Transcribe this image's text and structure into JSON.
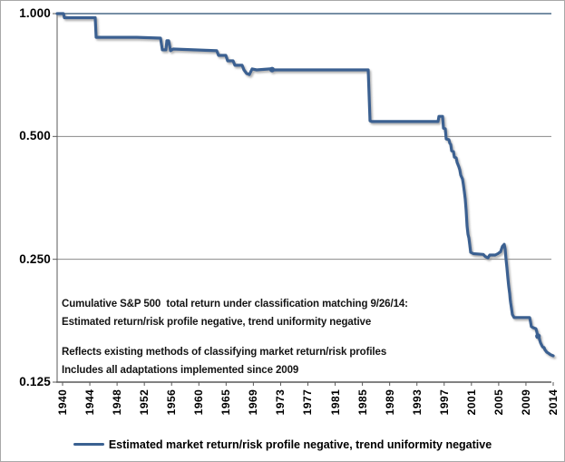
{
  "chart_data": {
    "type": "line",
    "title": "",
    "x_axis": {
      "tick_labels": [
        "1940",
        "1944",
        "1948",
        "1952",
        "1956",
        "1960",
        "1965",
        "1969",
        "1973",
        "1977",
        "1981",
        "1985",
        "1989",
        "1993",
        "1997",
        "2001",
        "2005",
        "2009",
        "2014"
      ],
      "range": [
        1939.2,
        2014
      ]
    },
    "y_axis": {
      "scale": "log2",
      "tick_labels": [
        "1.000",
        "0.500",
        "0.250",
        "0.125"
      ],
      "tick_values": [
        1.0,
        0.5,
        0.25,
        0.125
      ],
      "ylim": [
        0.125,
        1.0
      ]
    },
    "grid": "horizontal-only",
    "legend": {
      "position": "bottom",
      "label": "Estimated market return/risk profile negative, trend uniformity negative"
    },
    "annotation_lines": [
      "Cumulative S&P 500  total return under classification matching 9/26/14:",
      "Estimated return/risk profile negative, trend uniformity negative",
      "Reflects existing methods of classifying market return/risk profiles",
      "Includes all adaptations implemented since 2009"
    ],
    "colors": {
      "line": "#3A6191",
      "line_shadow": "#8f8f8f",
      "top_gridline": "#4A6A87",
      "gridline": "#8A8A8A",
      "axis": "#595959",
      "figure_border": "#A8A8A8"
    },
    "series": [
      {
        "name": "Estimated market return/risk profile negative, trend uniformity negative",
        "markers": [
          [
            1971.6,
            0.729
          ],
          [
            2011.7,
            0.162
          ]
        ],
        "points": [
          [
            1939.18,
            1.0
          ],
          [
            1940.14,
            1.0
          ],
          [
            1940.27,
            0.977
          ],
          [
            1944.92,
            0.977
          ],
          [
            1945.06,
            0.875
          ],
          [
            1951.22,
            0.875
          ],
          [
            1954.77,
            0.871
          ],
          [
            1955.05,
            0.815
          ],
          [
            1955.59,
            0.815
          ],
          [
            1955.73,
            0.858
          ],
          [
            1956.0,
            0.858
          ],
          [
            1956.28,
            0.811
          ],
          [
            1956.69,
            0.819
          ],
          [
            1963.25,
            0.811
          ],
          [
            1963.53,
            0.79
          ],
          [
            1964.62,
            0.79
          ],
          [
            1964.89,
            0.766
          ],
          [
            1965.71,
            0.766
          ],
          [
            1965.99,
            0.747
          ],
          [
            1967.08,
            0.747
          ],
          [
            1967.36,
            0.728
          ],
          [
            1967.77,
            0.713
          ],
          [
            1968.18,
            0.709
          ],
          [
            1968.59,
            0.732
          ],
          [
            1969.27,
            0.728
          ],
          [
            1971.32,
            0.732
          ],
          [
            1971.87,
            0.728
          ],
          [
            1986.1,
            0.728
          ],
          [
            1986.37,
            0.546
          ],
          [
            1986.64,
            0.544
          ],
          [
            1996.63,
            0.544
          ],
          [
            1996.76,
            0.56
          ],
          [
            1997.31,
            0.56
          ],
          [
            1997.45,
            0.524
          ],
          [
            1997.72,
            0.522
          ],
          [
            1997.86,
            0.493
          ],
          [
            1998.27,
            0.491
          ],
          [
            1998.4,
            0.481
          ],
          [
            1998.54,
            0.478
          ],
          [
            1998.68,
            0.461
          ],
          [
            1998.95,
            0.459
          ],
          [
            1999.09,
            0.445
          ],
          [
            1999.36,
            0.443
          ],
          [
            1999.5,
            0.432
          ],
          [
            1999.77,
            0.421
          ],
          [
            1999.91,
            0.414
          ],
          [
            2000.05,
            0.402
          ],
          [
            2000.32,
            0.393
          ],
          [
            2000.46,
            0.38
          ],
          [
            2000.59,
            0.366
          ],
          [
            2000.73,
            0.351
          ],
          [
            2000.87,
            0.329
          ],
          [
            2001.0,
            0.302
          ],
          [
            2001.14,
            0.288
          ],
          [
            2001.28,
            0.282
          ],
          [
            2001.41,
            0.271
          ],
          [
            2001.55,
            0.26
          ],
          [
            2001.96,
            0.258
          ],
          [
            2003.46,
            0.257
          ],
          [
            2003.74,
            0.254
          ],
          [
            2004.15,
            0.252
          ],
          [
            2004.42,
            0.256
          ],
          [
            2005.24,
            0.256
          ],
          [
            2005.65,
            0.258
          ],
          [
            2006.06,
            0.261
          ],
          [
            2006.34,
            0.269
          ],
          [
            2006.61,
            0.272
          ],
          [
            2006.75,
            0.265
          ],
          [
            2006.88,
            0.251
          ],
          [
            2007.02,
            0.238
          ],
          [
            2007.16,
            0.225
          ],
          [
            2007.29,
            0.215
          ],
          [
            2007.43,
            0.206
          ],
          [
            2007.5,
            0.2
          ],
          [
            2007.57,
            0.196
          ],
          [
            2007.7,
            0.19
          ],
          [
            2007.84,
            0.183
          ],
          [
            2008.11,
            0.18
          ],
          [
            2010.44,
            0.18
          ],
          [
            2010.57,
            0.176
          ],
          [
            2010.71,
            0.171
          ],
          [
            2010.98,
            0.17
          ],
          [
            2011.39,
            0.169
          ],
          [
            2011.53,
            0.166
          ],
          [
            2011.67,
            0.162
          ],
          [
            2011.8,
            0.163
          ],
          [
            2011.94,
            0.159
          ],
          [
            2012.08,
            0.156
          ],
          [
            2012.35,
            0.153
          ],
          [
            2012.49,
            0.152
          ],
          [
            2012.62,
            0.152
          ],
          [
            2012.76,
            0.15
          ],
          [
            2013.03,
            0.148
          ],
          [
            2013.31,
            0.147
          ],
          [
            2013.58,
            0.146
          ],
          [
            2014.0,
            0.145
          ]
        ]
      }
    ]
  }
}
